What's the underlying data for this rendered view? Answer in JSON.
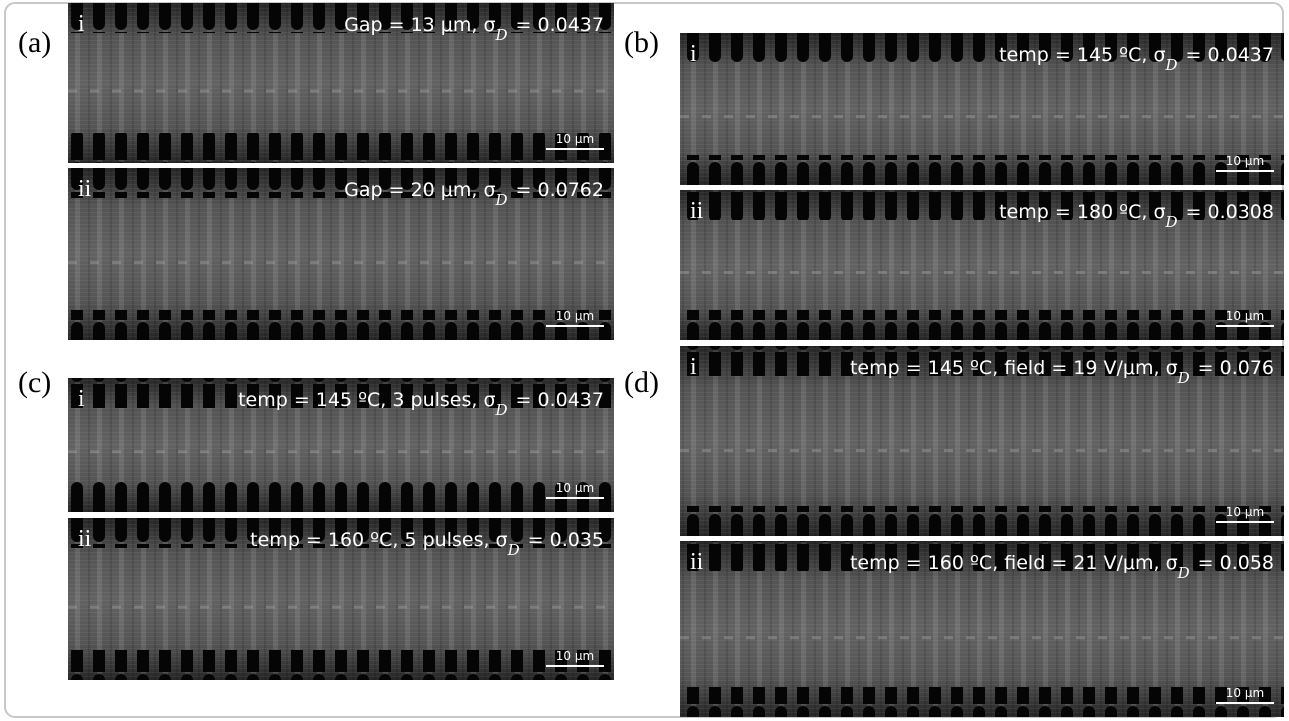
{
  "panels": [
    {
      "label": "(a)",
      "images": [
        {
          "index": "i",
          "caption": {
            "prefix": "Gap = 13 μm, σ",
            "sub": "D",
            "suffix": "= 0.0437"
          },
          "scale_bar": "10 μm"
        },
        {
          "index": "ii",
          "caption": {
            "prefix": "Gap = 20 μm, σ",
            "sub": "D",
            "suffix": "= 0.0762"
          },
          "scale_bar": "10 μm"
        }
      ]
    },
    {
      "label": "(b)",
      "images": [
        {
          "index": "i",
          "caption": {
            "prefix": "temp = 145 ºC, σ",
            "sub": "D",
            "suffix": "= 0.0437"
          },
          "scale_bar": "10 μm"
        },
        {
          "index": "ii",
          "caption": {
            "prefix": "temp = 180 ºC, σ",
            "sub": "D",
            "suffix": "= 0.0308"
          },
          "scale_bar": "10 μm"
        }
      ]
    },
    {
      "label": "(c)",
      "images": [
        {
          "index": "i",
          "caption": {
            "prefix": "temp = 145 ºC, 3 pulses, σ",
            "sub": "D",
            "suffix": "= 0.0437"
          },
          "scale_bar": "10 μm"
        },
        {
          "index": "ii",
          "caption": {
            "prefix": "temp = 160 ºC, 5 pulses, σ",
            "sub": "D",
            "suffix": "= 0.035"
          },
          "scale_bar": "10 μm"
        }
      ]
    },
    {
      "label": "(d)",
      "images": [
        {
          "index": "i",
          "caption": {
            "prefix": "temp = 145 ºC, field = 19 V/μm, σ",
            "sub": "D",
            "suffix": "= 0.076"
          },
          "scale_bar": "10 μm"
        },
        {
          "index": "ii",
          "caption": {
            "prefix": "temp = 160 ºC, field = 21 V/μm, σ",
            "sub": "D",
            "suffix": "= 0.058"
          },
          "scale_bar": "10 μm"
        }
      ]
    }
  ]
}
